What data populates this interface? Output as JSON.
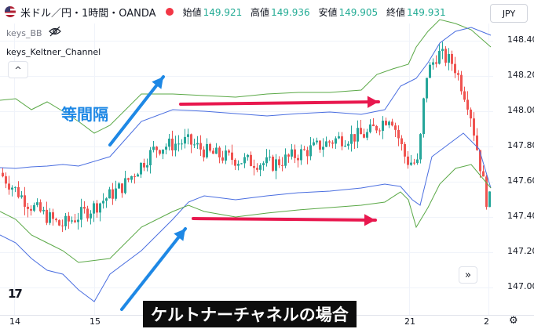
{
  "header": {
    "symbol": "米ドル／円・1時間・OANDA",
    "ohlc": [
      {
        "key": "始値",
        "value": "149.921"
      },
      {
        "key": "高値",
        "value": "149.936"
      },
      {
        "key": "安値",
        "value": "149.905"
      },
      {
        "key": "終値",
        "value": "149.931"
      }
    ],
    "currency": "JPY"
  },
  "indicators": {
    "bb": "keys_BB",
    "keltner": "keys_Keltner_Channel",
    "collapse_glyph": "^"
  },
  "yaxis": [
    "148.400",
    "148.200",
    "148.000",
    "147.800",
    "147.600",
    "147.400",
    "147.200",
    "147.000"
  ],
  "xaxis": [
    "14",
    "15",
    "21",
    "2"
  ],
  "annotations": {
    "equal_spacing": "等間隔",
    "caption": "ケルトナーチャネルの場合"
  },
  "buttons": {
    "jump": "»",
    "logo": "17",
    "settings": "⚙"
  },
  "colors": {
    "up": "#26a69a",
    "down": "#ef5350",
    "keltner_mid": "#4a6ee0",
    "bb_band": "#5aa846",
    "arrow_blue": "#1e88e5",
    "arrow_red": "#e8184e"
  }
}
